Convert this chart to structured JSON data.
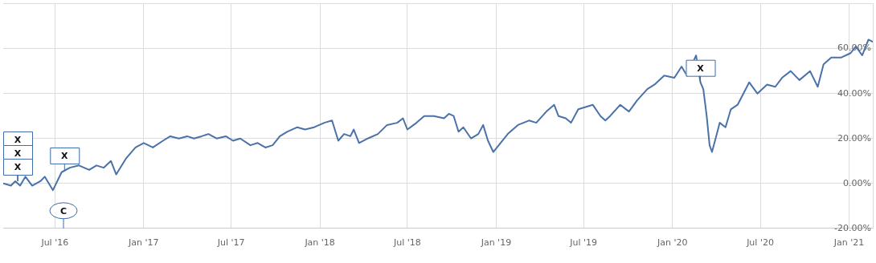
{
  "chart_data": {
    "type": "line",
    "x": [
      "2016-03-16",
      "2016-04-01",
      "2016-04-10",
      "2016-04-20",
      "2016-05-01",
      "2016-05-15",
      "2016-06-01",
      "2016-06-10",
      "2016-06-27",
      "2016-07-15",
      "2016-08-01",
      "2016-08-20",
      "2016-09-10",
      "2016-09-25",
      "2016-10-10",
      "2016-10-25",
      "2016-11-05",
      "2016-11-25",
      "2016-12-15",
      "2017-01-01",
      "2017-01-20",
      "2017-02-10",
      "2017-02-25",
      "2017-03-15",
      "2017-04-01",
      "2017-04-15",
      "2017-05-01",
      "2017-05-15",
      "2017-06-01",
      "2017-06-20",
      "2017-07-05",
      "2017-07-20",
      "2017-08-10",
      "2017-08-25",
      "2017-09-10",
      "2017-09-25",
      "2017-10-10",
      "2017-10-25",
      "2017-11-15",
      "2017-12-01",
      "2017-12-20",
      "2018-01-10",
      "2018-01-26",
      "2018-02-08",
      "2018-02-20",
      "2018-03-05",
      "2018-03-12",
      "2018-03-23",
      "2018-04-10",
      "2018-05-01",
      "2018-05-20",
      "2018-06-10",
      "2018-06-22",
      "2018-07-01",
      "2018-07-20",
      "2018-08-05",
      "2018-08-25",
      "2018-09-15",
      "2018-09-25",
      "2018-10-05",
      "2018-10-15",
      "2018-10-25",
      "2018-11-10",
      "2018-11-25",
      "2018-12-05",
      "2018-12-15",
      "2018-12-26",
      "2019-01-10",
      "2019-01-25",
      "2019-02-15",
      "2019-03-10",
      "2019-03-25",
      "2019-04-15",
      "2019-05-01",
      "2019-05-10",
      "2019-05-25",
      "2019-06-05",
      "2019-06-20",
      "2019-07-05",
      "2019-07-20",
      "2019-08-05",
      "2019-08-15",
      "2019-08-25",
      "2019-09-15",
      "2019-10-03",
      "2019-10-20",
      "2019-11-10",
      "2019-11-25",
      "2019-12-15",
      "2020-01-05",
      "2020-01-20",
      "2020-01-31",
      "2020-02-19",
      "2020-02-28",
      "2020-03-05",
      "2020-03-12",
      "2020-03-18",
      "2020-03-23",
      "2020-04-02",
      "2020-04-08",
      "2020-04-20",
      "2020-05-01",
      "2020-05-15",
      "2020-06-08",
      "2020-06-25",
      "2020-07-15",
      "2020-08-01",
      "2020-08-15",
      "2020-09-02",
      "2020-09-20",
      "2020-10-12",
      "2020-10-28",
      "2020-11-09",
      "2020-11-25",
      "2020-12-15",
      "2021-01-04",
      "2021-01-15",
      "2021-01-28",
      "2021-02-10",
      "2021-02-19"
    ],
    "series": [
      {
        "color": "#4a72a8",
        "values": [
          0,
          -1,
          1,
          -1,
          3,
          -1,
          1,
          3,
          -3,
          5,
          7,
          8,
          6,
          8,
          7,
          10,
          4,
          11,
          16,
          18,
          16,
          19,
          21,
          20,
          21,
          20,
          21,
          22,
          20,
          21,
          19,
          20,
          17,
          18,
          16,
          17,
          21,
          23,
          25,
          24,
          25,
          27,
          28,
          19,
          22,
          21,
          24,
          18,
          20,
          22,
          26,
          27,
          29,
          24,
          27,
          30,
          30,
          29,
          31,
          30,
          23,
          25,
          20,
          22,
          26,
          19,
          14,
          18,
          22,
          26,
          28,
          27,
          32,
          35,
          30,
          29,
          27,
          33,
          34,
          35,
          30,
          28,
          30,
          35,
          32,
          37,
          42,
          44,
          48,
          47,
          52,
          48,
          57,
          45,
          42,
          30,
          17,
          14,
          22,
          27,
          25,
          33,
          35,
          45,
          40,
          44,
          43,
          47,
          50,
          46,
          50,
          43,
          53,
          56,
          56,
          58,
          61,
          57,
          64,
          63
        ]
      }
    ],
    "xlim": [
      "2016-03-16",
      "2021-02-19"
    ],
    "xticks": [
      {
        "value": "2016-07-01",
        "label": "Jul '16"
      },
      {
        "value": "2017-01-01",
        "label": "Jan '17"
      },
      {
        "value": "2017-07-01",
        "label": "Jul '17"
      },
      {
        "value": "2018-01-01",
        "label": "Jan '18"
      },
      {
        "value": "2018-07-01",
        "label": "Jul '18"
      },
      {
        "value": "2019-01-01",
        "label": "Jan '19"
      },
      {
        "value": "2019-07-01",
        "label": "Jul '19"
      },
      {
        "value": "2020-01-01",
        "label": "Jan '20"
      },
      {
        "value": "2020-07-01",
        "label": "Jul '20"
      },
      {
        "value": "2021-01-01",
        "label": "Jan '21"
      }
    ],
    "ylim": [
      -20,
      80
    ],
    "yticks": [
      {
        "value": -20,
        "label": "-20.00%"
      },
      {
        "value": 0,
        "label": "0.00%"
      },
      {
        "value": 20,
        "label": "20.00%"
      },
      {
        "value": 40,
        "label": "40.00%"
      },
      {
        "value": 60,
        "label": "60.00%"
      },
      {
        "value": 80,
        "label": null
      }
    ],
    "annotations": [
      {
        "text": "X",
        "x": "2016-04-15",
        "y": 1
      },
      {
        "text": "X",
        "x": "2016-04-15",
        "y": 1
      },
      {
        "text": "X",
        "x": "2016-04-15",
        "y": 1
      },
      {
        "text": "X",
        "x": "2016-07-21",
        "y": 6
      },
      {
        "text": "X",
        "x": "2020-02-28",
        "y": 45
      },
      "C"
    ],
    "grid": true,
    "legend": false,
    "marker": "none",
    "line_style": "solid"
  }
}
